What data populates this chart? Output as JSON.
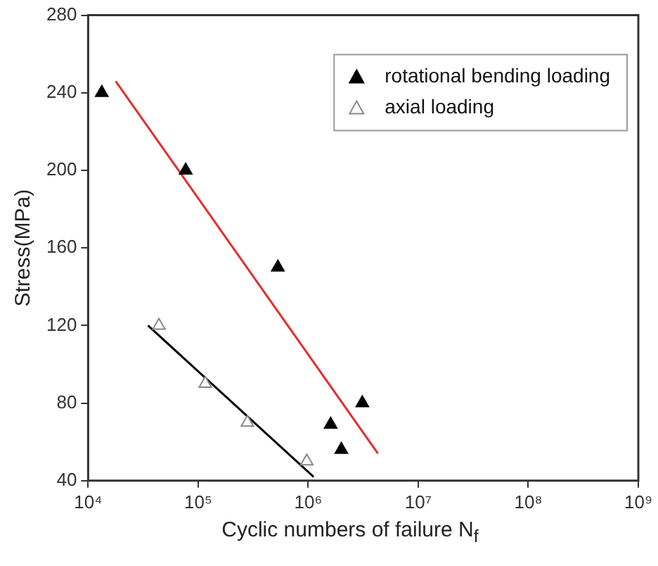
{
  "chart_data": {
    "type": "scatter",
    "xlabel": "Cyclic numbers of failure N$_{f}$",
    "ylabel": "Stress(MPa)",
    "log": "x",
    "xlim": [
      10000,
      1000000000
    ],
    "xticks": [
      {
        "value": 10000,
        "label": "10⁴"
      },
      {
        "value": 100000,
        "label": "10⁵"
      },
      {
        "value": 1000000,
        "label": "10⁶"
      },
      {
        "value": 10000000,
        "label": "10⁷"
      },
      {
        "value": 100000000,
        "label": "10⁸"
      },
      {
        "value": 1000000000,
        "label": "10⁹"
      }
    ],
    "ylim": [
      40,
      280
    ],
    "yticks": [
      40,
      80,
      120,
      160,
      200,
      240,
      280
    ],
    "grid": false,
    "legend": "top right",
    "marker": "triangle",
    "series": [
      {
        "name": "rotational bending loading",
        "color": "#000000",
        "x": [
          13300,
          77000,
          530000,
          1600000,
          2000000,
          3100000
        ],
        "values": [
          240,
          200,
          150,
          69,
          56,
          80
        ]
      },
      {
        "name": "axial loading",
        "color": "#888888",
        "x": [
          44000,
          116000,
          280000,
          970000
        ],
        "values": [
          120,
          90,
          70,
          50
        ]
      },
      {
        "type": "line",
        "color": "#e03030",
        "marker": "none",
        "x": [
          17800,
          4300000
        ],
        "values": [
          246,
          54
        ]
      },
      {
        "type": "line",
        "color": "#000000",
        "marker": "none",
        "x": [
          35000,
          1120000
        ],
        "values": [
          120,
          42
        ]
      }
    ]
  }
}
